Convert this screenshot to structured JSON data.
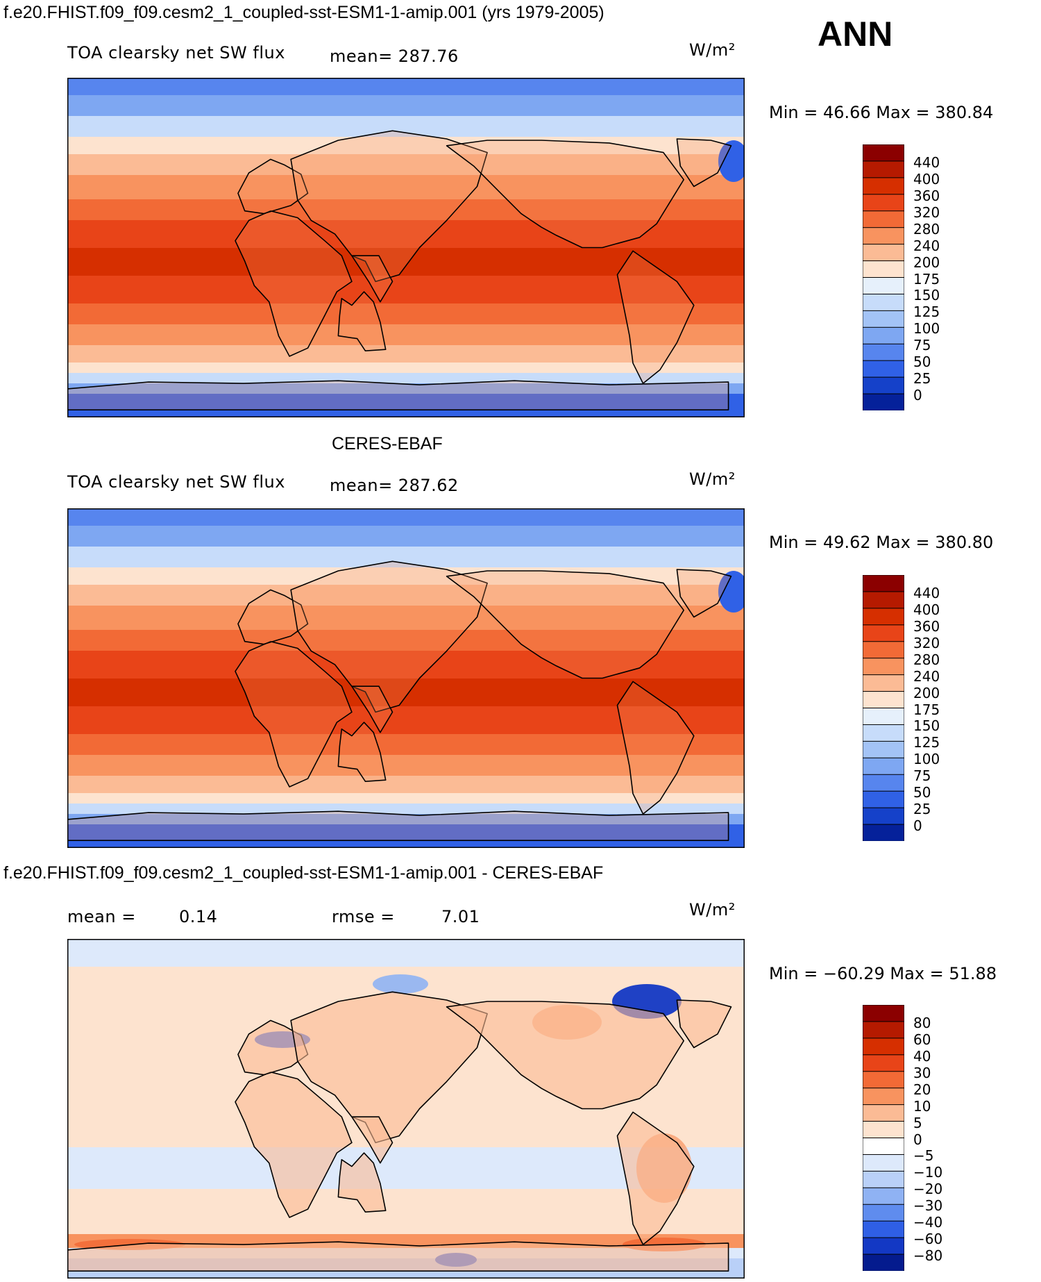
{
  "chart_data": [
    {
      "type": "heatmap",
      "panel": "model",
      "title": "f.e20.FHIST.f09_f09.cesm2_1_coupled-sst-ESM1-1-amip.001 (yrs 1979-2005)",
      "season": "ANN",
      "variable": "TOA clearsky net SW flux",
      "mean_text": "mean= 287.76",
      "units_text": "W/m²",
      "minmax_text": "Min =   46.66  Max  =  380.84",
      "min": 46.66,
      "max": 380.84,
      "mean": 287.76,
      "colorbar_levels": [
        "440",
        "400",
        "360",
        "320",
        "280",
        "240",
        "200",
        "175",
        "150",
        "125",
        "100",
        "75",
        "50",
        "25",
        "0"
      ],
      "colorbar_colors": [
        "#8b0000",
        "#b51a00",
        "#d62f00",
        "#e84418",
        "#f26a36",
        "#f8935f",
        "#fbbb95",
        "#fde3cf",
        "#e6f0fb",
        "#c7dcfa",
        "#a3c3f6",
        "#7ea7f2",
        "#5785ee",
        "#3061e6",
        "#1541c9",
        "#05219a"
      ]
    },
    {
      "type": "heatmap",
      "panel": "obs",
      "title": "CERES-EBAF",
      "variable": "TOA clearsky net SW flux",
      "mean_text": "mean= 287.62",
      "units_text": "W/m²",
      "minmax_text": "Min =   49.62  Max  =  380.80",
      "min": 49.62,
      "max": 380.8,
      "mean": 287.62,
      "colorbar_levels": [
        "440",
        "400",
        "360",
        "320",
        "280",
        "240",
        "200",
        "175",
        "150",
        "125",
        "100",
        "75",
        "50",
        "25",
        "0"
      ],
      "colorbar_colors": [
        "#8b0000",
        "#b51a00",
        "#d62f00",
        "#e84418",
        "#f26a36",
        "#f8935f",
        "#fbbb95",
        "#fde3cf",
        "#e6f0fb",
        "#c7dcfa",
        "#a3c3f6",
        "#7ea7f2",
        "#5785ee",
        "#3061e6",
        "#1541c9",
        "#05219a"
      ]
    },
    {
      "type": "heatmap",
      "panel": "diff",
      "title": "f.e20.FHIST.f09_f09.cesm2_1_coupled-sst-ESM1-1-amip.001 - CERES-EBAF",
      "mean_label": "mean =",
      "mean_value": "0.14",
      "rmse_label": "rmse =",
      "rmse_value": "7.01",
      "units_text": "W/m²",
      "minmax_text": "Min  = −60.29  Max  =   51.88",
      "min": -60.29,
      "max": 51.88,
      "mean": 0.14,
      "rmse": 7.01,
      "colorbar_levels": [
        "80",
        "60",
        "40",
        "30",
        "20",
        "10",
        "5",
        "0",
        "−5",
        "−10",
        "−20",
        "−30",
        "−40",
        "−60",
        "−80"
      ],
      "colorbar_colors": [
        "#8b0000",
        "#b51a00",
        "#d62f00",
        "#e84418",
        "#f26a36",
        "#f8935f",
        "#fbbb95",
        "#fde3cf",
        "#ffffff",
        "#dde9fb",
        "#b9d0f8",
        "#8fb2f3",
        "#5f8cee",
        "#2f5fe5",
        "#1338c4",
        "#041b8e"
      ]
    }
  ]
}
